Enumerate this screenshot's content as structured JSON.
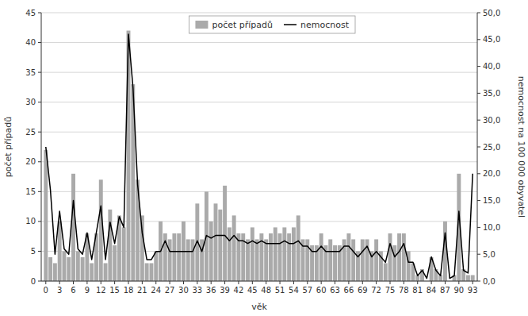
{
  "chart_data": {
    "type": "bar",
    "xlabel": "věk",
    "ylabel": "počet případů",
    "y2label": "nemocnost na 100 000 obyvatel",
    "x": [
      0,
      1,
      2,
      3,
      4,
      5,
      6,
      7,
      8,
      9,
      10,
      11,
      12,
      13,
      14,
      15,
      16,
      17,
      18,
      19,
      20,
      21,
      22,
      23,
      24,
      25,
      26,
      27,
      28,
      29,
      30,
      31,
      32,
      33,
      34,
      35,
      36,
      37,
      38,
      39,
      40,
      41,
      42,
      43,
      44,
      45,
      46,
      47,
      48,
      49,
      50,
      51,
      52,
      53,
      54,
      55,
      56,
      57,
      58,
      59,
      60,
      61,
      62,
      63,
      64,
      65,
      66,
      67,
      68,
      69,
      70,
      71,
      72,
      73,
      74,
      75,
      76,
      77,
      78,
      79,
      80,
      81,
      82,
      83,
      84,
      85,
      86,
      87,
      88,
      89,
      90,
      91,
      92,
      93
    ],
    "xlim": [
      -1,
      94
    ],
    "xticks": [
      0,
      3,
      6,
      9,
      12,
      15,
      18,
      21,
      24,
      27,
      30,
      33,
      36,
      39,
      42,
      45,
      48,
      51,
      54,
      57,
      60,
      63,
      66,
      69,
      72,
      75,
      78,
      81,
      84,
      87,
      90,
      93
    ],
    "ylim": [
      0,
      45
    ],
    "yticks": [
      0,
      5,
      10,
      15,
      20,
      25,
      30,
      35,
      40,
      45
    ],
    "y2lim": [
      0,
      50
    ],
    "y2ticks": [
      {
        "value": 0,
        "label": "0,0"
      },
      {
        "value": 5,
        "label": "5,0"
      },
      {
        "value": 10,
        "label": "10,0"
      },
      {
        "value": 15,
        "label": "15,0"
      },
      {
        "value": 20,
        "label": "20,0"
      },
      {
        "value": 25,
        "label": "25,0"
      },
      {
        "value": 30,
        "label": "30,0"
      },
      {
        "value": 35,
        "label": "35,0"
      },
      {
        "value": 40,
        "label": "40,0"
      },
      {
        "value": 45,
        "label": "45,0"
      },
      {
        "value": 50,
        "label": "50,0"
      }
    ],
    "grid": true,
    "legend": "top",
    "series": [
      {
        "name": "počet případů",
        "type": "bar",
        "color": "#aaaaaa",
        "values": [
          22,
          4,
          3,
          10,
          5,
          4,
          18,
          5,
          4,
          8,
          3,
          8,
          17,
          3,
          12,
          6,
          11,
          9,
          42,
          33,
          17,
          11,
          3,
          3,
          5,
          10,
          8,
          7,
          8,
          8,
          10,
          7,
          7,
          13,
          7,
          15,
          10,
          13,
          12,
          16,
          9,
          11,
          8,
          8,
          7,
          9,
          7,
          8,
          7,
          8,
          9,
          8,
          9,
          8,
          9,
          11,
          7,
          7,
          6,
          6,
          8,
          6,
          7,
          6,
          6,
          7,
          8,
          7,
          5,
          7,
          7,
          5,
          7,
          5,
          3,
          8,
          6,
          8,
          8,
          5,
          3,
          1,
          2,
          0,
          4,
          2,
          1,
          10,
          0,
          1,
          18,
          2,
          1,
          1
        ]
      },
      {
        "name": "nemocnost",
        "type": "line",
        "color": "#000000",
        "axis": "y2",
        "values": [
          25.0,
          17.0,
          5.0,
          13.0,
          6.0,
          5.0,
          15.0,
          6.0,
          5.0,
          9.0,
          4.0,
          9.0,
          14.0,
          4.0,
          11.0,
          7.0,
          12.0,
          10.0,
          46.0,
          36.0,
          18.0,
          9.0,
          4.0,
          4.0,
          5.5,
          5.5,
          7.5,
          5.5,
          5.5,
          5.5,
          5.5,
          5.5,
          5.5,
          7.5,
          5.5,
          8.5,
          8.0,
          8.5,
          8.5,
          8.5,
          7.5,
          8.5,
          7.5,
          7.5,
          7.0,
          7.5,
          7.0,
          7.5,
          7.0,
          7.0,
          7.0,
          7.0,
          7.5,
          7.0,
          7.0,
          7.5,
          6.5,
          6.5,
          5.5,
          5.5,
          6.5,
          5.5,
          5.5,
          5.5,
          5.5,
          6.5,
          6.5,
          5.5,
          4.5,
          5.5,
          6.5,
          4.5,
          5.5,
          4.5,
          3.5,
          7.0,
          4.5,
          5.5,
          7.0,
          3.5,
          3.5,
          1.0,
          2.0,
          0.5,
          4.5,
          2.0,
          1.0,
          9.0,
          0.5,
          1.0,
          13.0,
          2.0,
          1.5,
          20.0
        ]
      }
    ]
  }
}
